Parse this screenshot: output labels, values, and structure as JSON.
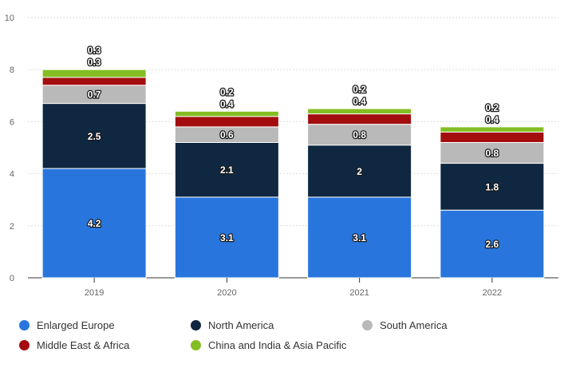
{
  "chart_data": {
    "type": "bar",
    "stacked": true,
    "categories": [
      "2019",
      "2020",
      "2021",
      "2022"
    ],
    "series": [
      {
        "name": "Enlarged Europe",
        "color": "#2876dd",
        "values": [
          4.2,
          3.1,
          3.1,
          2.6
        ]
      },
      {
        "name": "North America",
        "color": "#0f2740",
        "values": [
          2.5,
          2.1,
          2,
          1.8
        ]
      },
      {
        "name": "South America",
        "color": "#b9b9b9",
        "values": [
          0.7,
          0.6,
          0.8,
          0.8
        ]
      },
      {
        "name": "Middle East & Africa",
        "color": "#a30d0e",
        "values": [
          0.3,
          0.4,
          0.4,
          0.4
        ]
      },
      {
        "name": "China and India & Asia Pacific",
        "color": "#84be23",
        "values": [
          0.3,
          0.2,
          0.2,
          0.2
        ]
      }
    ],
    "yticks": [
      "0",
      "2",
      "4",
      "6",
      "8",
      "10"
    ],
    "ylim": [
      0,
      10
    ],
    "grid": true,
    "legend_position": "bottom",
    "title": "",
    "xlabel": "",
    "ylabel": ""
  }
}
